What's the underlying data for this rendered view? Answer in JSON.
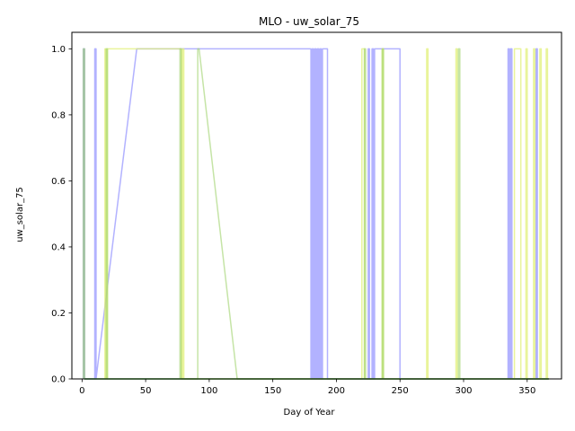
{
  "chart_data": {
    "type": "line",
    "title": "MLO - uw_solar_75",
    "xlabel": "Day of Year",
    "ylabel": "uw_solar_75",
    "xlim": [
      -8,
      377
    ],
    "ylim": [
      0,
      1.05
    ],
    "xticks": [
      "0",
      "50",
      "100",
      "150",
      "200",
      "250",
      "300",
      "350"
    ],
    "xtick_values": [
      0,
      50,
      100,
      150,
      200,
      250,
      300,
      350
    ],
    "yticks": [
      "0.0",
      "0.2",
      "0.4",
      "0.6",
      "0.8",
      "1.0"
    ],
    "ytick_values": [
      0,
      0.2,
      0.4,
      0.6,
      0.8,
      1.0
    ],
    "grid": false,
    "legend": "none",
    "series": [
      {
        "color": "#7f7fff",
        "opacity": 0.6,
        "x": [
          1,
          1,
          2,
          2,
          10,
          10,
          11,
          11,
          43,
          180,
          180,
          181,
          181,
          182,
          182,
          183,
          183,
          184,
          184,
          185,
          185,
          186,
          186,
          187,
          187,
          188,
          188,
          189,
          189,
          190,
          190,
          193,
          193,
          225,
          225,
          226,
          226,
          228,
          228,
          229,
          229,
          230,
          230,
          250,
          250,
          335,
          335,
          336,
          336,
          337,
          337,
          338,
          338,
          357,
          357,
          358,
          358,
          367
        ],
        "y": [
          0,
          1,
          1,
          0,
          0,
          1,
          1,
          0,
          1,
          1,
          0,
          0,
          1,
          1,
          0,
          0,
          1,
          1,
          0,
          0,
          1,
          1,
          0,
          0,
          1,
          1,
          0,
          0,
          1,
          1,
          1,
          1,
          0,
          0,
          1,
          1,
          0,
          0,
          1,
          1,
          0,
          0,
          1,
          1,
          0,
          0,
          1,
          1,
          0,
          0,
          1,
          1,
          0,
          0,
          1,
          1,
          0,
          0
        ]
      },
      {
        "color": "#e0ef70",
        "opacity": 0.7,
        "x": [
          18,
          18,
          19,
          19,
          20,
          20,
          78,
          78,
          79,
          79,
          80,
          80,
          220,
          220,
          222,
          222,
          236,
          236,
          237,
          237,
          271,
          271,
          272,
          272,
          294,
          294,
          295,
          295,
          340,
          340,
          345,
          345,
          349,
          349,
          350,
          350,
          355,
          355,
          356,
          356,
          360,
          360,
          361,
          361,
          365,
          365,
          366,
          366,
          367
        ],
        "y": [
          0,
          1,
          1,
          0,
          0,
          1,
          1,
          0,
          0,
          1,
          1,
          0,
          0,
          1,
          1,
          0,
          0,
          1,
          1,
          0,
          0,
          1,
          1,
          0,
          0,
          1,
          1,
          0,
          0,
          1,
          1,
          0,
          0,
          1,
          1,
          0,
          0,
          1,
          1,
          0,
          0,
          1,
          1,
          0,
          0,
          1,
          1,
          0,
          0
        ]
      },
      {
        "color": "#9fd26a",
        "opacity": 0.6,
        "x": [
          1,
          1,
          2,
          2,
          19,
          19,
          20,
          20,
          77,
          77,
          78,
          78,
          91,
          91,
          92,
          122,
          122,
          222,
          222,
          223,
          223,
          236,
          236,
          237,
          237,
          296,
          296,
          297,
          297,
          367
        ],
        "y": [
          0,
          1,
          1,
          0,
          0,
          1,
          1,
          0,
          0,
          1,
          1,
          0,
          0,
          1,
          1,
          0,
          0,
          0,
          1,
          1,
          0,
          0,
          1,
          1,
          0,
          0,
          1,
          1,
          0,
          0
        ]
      },
      {
        "color": "#3aa33a",
        "opacity": 0.9,
        "x": [
          2,
          367
        ],
        "y": [
          0,
          0
        ]
      }
    ]
  }
}
